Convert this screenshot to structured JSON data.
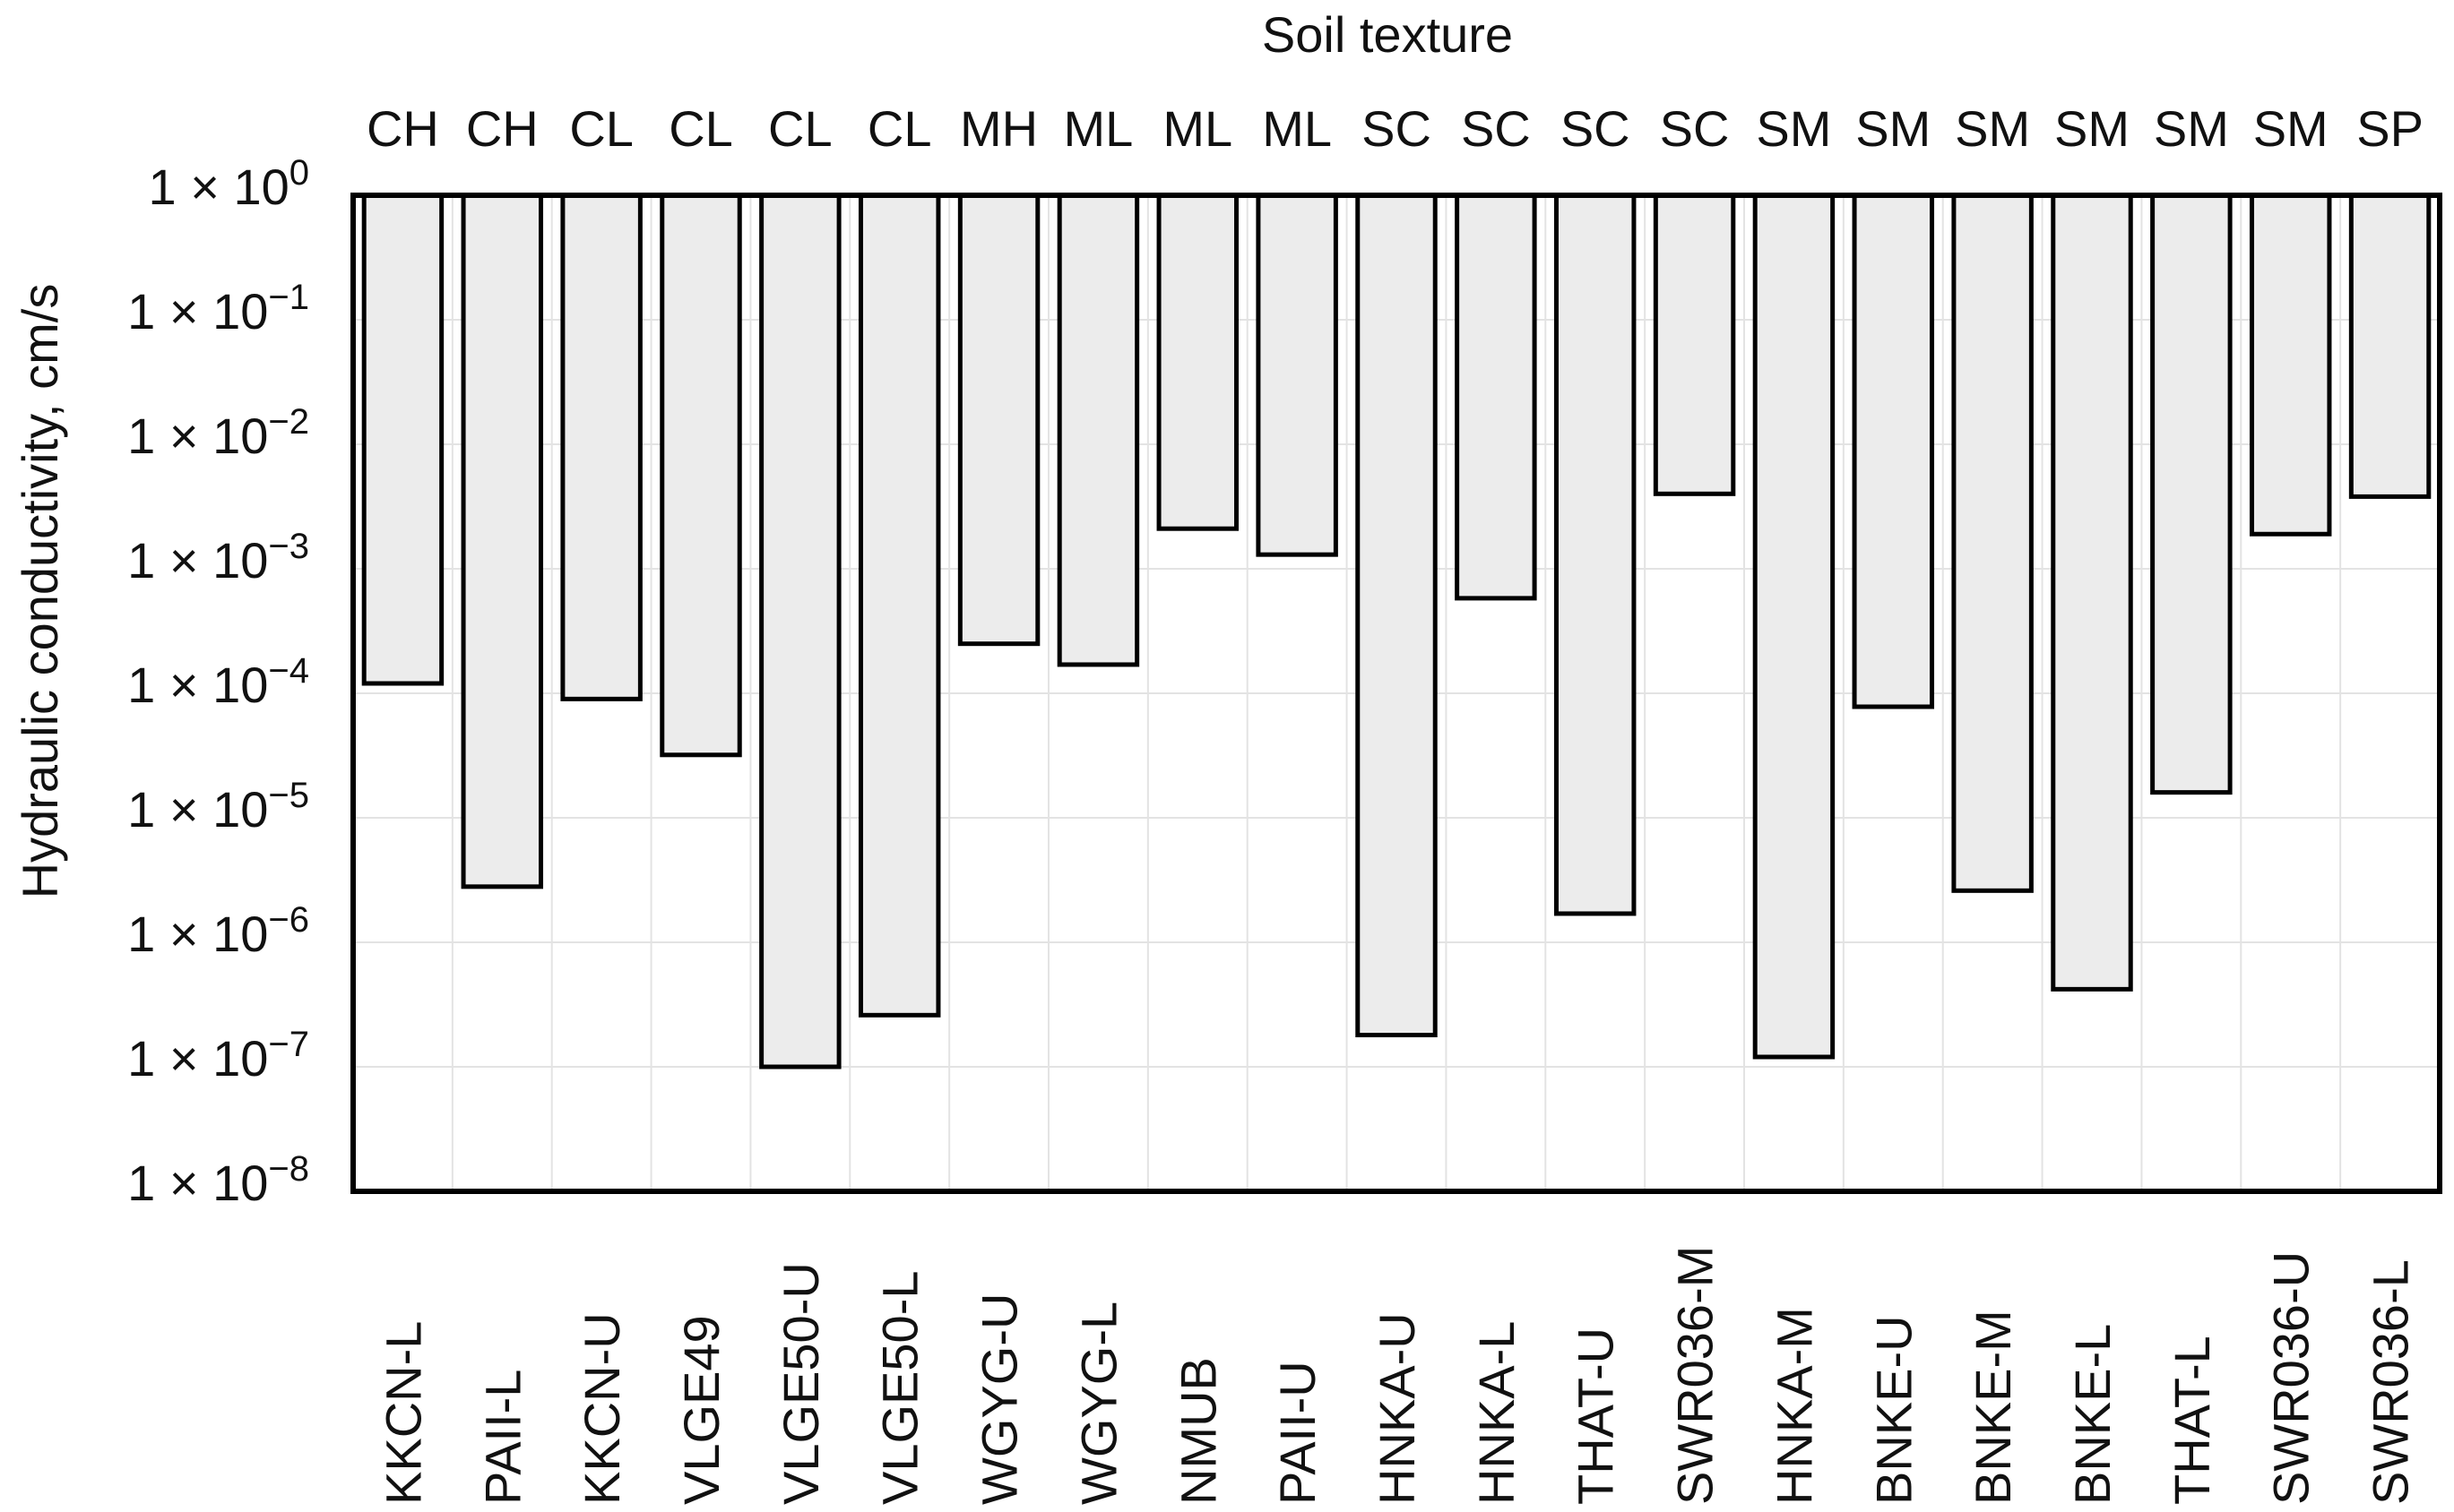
{
  "chart_data": {
    "type": "bar",
    "title": "Soil texture",
    "xlabel": "",
    "ylabel": "Hydraulic conductivity, cm/s",
    "yscale": "log",
    "ylim": [
      1e-08,
      1
    ],
    "grid": true,
    "bar_direction": "downward from top of axis",
    "y_ticks": [
      {
        "mantissa": "1 × 10",
        "exponent": "0",
        "value": 1
      },
      {
        "mantissa": "1 × 10",
        "exponent": "−1",
        "value": 0.1
      },
      {
        "mantissa": "1 × 10",
        "exponent": "−2",
        "value": 0.01
      },
      {
        "mantissa": "1 × 10",
        "exponent": "−3",
        "value": 0.001
      },
      {
        "mantissa": "1 × 10",
        "exponent": "−4",
        "value": 0.0001
      },
      {
        "mantissa": "1 × 10",
        "exponent": "−5",
        "value": 1e-05
      },
      {
        "mantissa": "1 × 10",
        "exponent": "−6",
        "value": 1e-06
      },
      {
        "mantissa": "1 × 10",
        "exponent": "−7",
        "value": 1e-07
      },
      {
        "mantissa": "1 × 10",
        "exponent": "−8",
        "value": 1e-08
      }
    ],
    "categories": [
      "KKCN-L",
      "PAII-L",
      "KKCN-U",
      "VLGE49",
      "VLGE50-U",
      "VLGE50-L",
      "WGYG-U",
      "WGYG-L",
      "NMUB",
      "PAII-U",
      "HNKA-U",
      "HNKA-L",
      "THAT-U",
      "SWR036-M",
      "HNKA-M",
      "BNKE-U",
      "BNKE-M",
      "BNKE-L",
      "THAT-L",
      "SWR036-U",
      "SWR036-L"
    ],
    "textures": [
      "CH",
      "CH",
      "CL",
      "CL",
      "CL",
      "CL",
      "MH",
      "ML",
      "ML",
      "ML",
      "SC",
      "SC",
      "SC",
      "SC",
      "SM",
      "SM",
      "SM",
      "SM",
      "SM",
      "SM",
      "SP"
    ],
    "series": [
      {
        "name": "Hydraulic conductivity",
        "values": [
          0.00012,
          2.8e-06,
          9e-05,
          3.2e-05,
          1e-07,
          2.6e-07,
          0.00025,
          0.00017,
          0.0021,
          0.0013,
          1.8e-07,
          0.00058,
          1.7e-06,
          0.004,
          1.2e-07,
          7.8e-05,
          2.6e-06,
          4.2e-07,
          1.6e-05,
          0.0019,
          0.0038
        ]
      }
    ]
  }
}
